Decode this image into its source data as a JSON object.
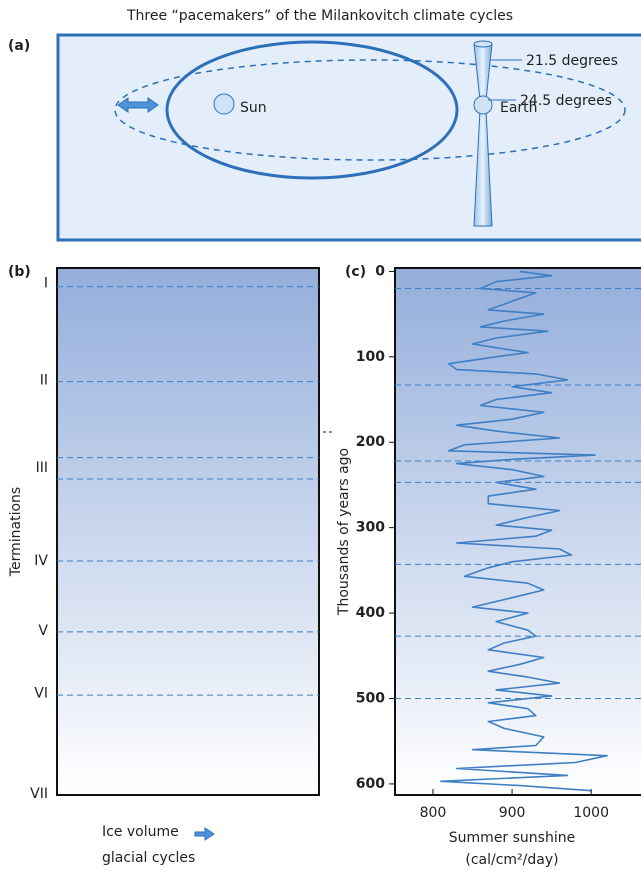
{
  "title": "Three “pacemakers” of the Milankovitch climate cycles",
  "diagram": {
    "label": "(a)",
    "sun": "Sun",
    "earth": "Earth",
    "tilt_min": "21.5 degrees",
    "tilt_max": "24.5 degrees"
  },
  "chart_data": [
    {
      "type": "markers",
      "label": "(b)",
      "y_label": "Terminations",
      "x_label": "Ice volume",
      "x_label2": "glacial cycles",
      "categories": [
        "I",
        "II",
        "III",
        "IV",
        "V",
        "VI",
        "VII"
      ],
      "values": [
        14,
        128,
        230,
        339,
        421,
        494,
        612
      ],
      "lines": [
        18,
        129,
        218,
        243,
        339,
        422,
        496
      ],
      "ylim": [
        -4,
        613
      ],
      "color": "#3f7fc4"
    },
    {
      "type": "line",
      "label": "(c)",
      "y_label": "Thousands of years ago",
      "x_label": "Summer sunshine",
      "x_label2": "(cal/cm²/day)",
      "x": [
        0,
        5,
        12,
        20,
        25,
        35,
        45,
        50,
        58,
        65,
        70,
        78,
        85,
        95,
        100,
        108,
        115,
        120,
        127,
        135,
        142,
        150,
        157,
        165,
        173,
        180,
        187,
        195,
        203,
        210,
        215,
        220,
        225,
        232,
        240,
        247,
        255,
        263,
        272,
        280,
        288,
        297,
        303,
        310,
        318,
        325,
        332,
        340,
        347,
        357,
        365,
        373,
        382,
        393,
        400,
        410,
        420,
        427,
        435,
        443,
        452,
        460,
        468,
        475,
        482,
        490,
        497,
        505,
        512,
        520,
        527,
        535,
        545,
        555,
        560,
        567,
        575,
        582,
        590,
        597,
        602,
        608
      ],
      "values": [
        910,
        950,
        880,
        860,
        930,
        900,
        870,
        940,
        890,
        860,
        945,
        880,
        850,
        920,
        880,
        820,
        830,
        930,
        970,
        900,
        950,
        880,
        860,
        940,
        900,
        830,
        880,
        960,
        840,
        820,
        1005,
        900,
        830,
        900,
        940,
        880,
        930,
        870,
        870,
        960,
        920,
        880,
        950,
        930,
        830,
        960,
        975,
        900,
        870,
        840,
        920,
        940,
        900,
        850,
        920,
        880,
        920,
        930,
        890,
        870,
        940,
        910,
        870,
        920,
        960,
        880,
        950,
        870,
        920,
        930,
        870,
        890,
        940,
        930,
        850,
        1020,
        980,
        830,
        970,
        810,
        910,
        1000
      ],
      "lines": [
        20,
        133,
        222,
        247,
        343,
        427,
        500
      ],
      "xlim": [
        752,
        1063
      ],
      "ylim": [
        -4,
        613
      ],
      "xticks": [
        800,
        900,
        1000
      ],
      "yticks": [
        0,
        100,
        200,
        300,
        400,
        500,
        600
      ],
      "color": "#3f7fc4"
    }
  ]
}
